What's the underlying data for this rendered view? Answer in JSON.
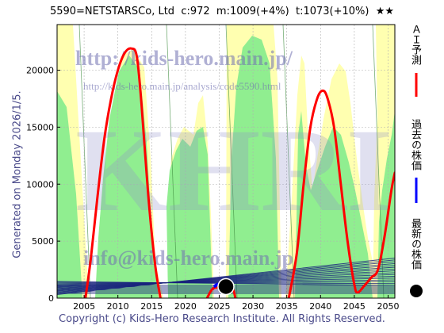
{
  "header": {
    "title": "5590=NETSTARSCo, Ltd  c:972  m:1009(+4%)  t:1073(+10%)  ★★"
  },
  "side": {
    "generated": "Generated on Monday 2026/1/5."
  },
  "footer": {
    "copyright": "Copyright (c) Kids-Hero Research Institute. All Rights Reserved."
  },
  "watermarks": {
    "url": "http://kids-hero.main.jp/",
    "analysis": "http://kids-hero.main.jp/analysis/code5590.html",
    "logo": "KHRI",
    "email": "info@kids-hero.main.jp"
  },
  "legend": {
    "ai_forecast": "ＡＩ予測",
    "past_price": "過去の株価",
    "latest_price": "最新の株価"
  },
  "colors": {
    "ai_line": "#ff0000",
    "past_line": "#0000ff",
    "latest_marker": "#000000",
    "green_fill": "#90ee90",
    "yellow_fill": "#ffffb0",
    "band_lines": "#1a237e"
  },
  "chart_data": {
    "type": "line",
    "xlim": [
      2001,
      2051
    ],
    "ylim": [
      0,
      24000
    ],
    "x_ticks": [
      2005,
      2010,
      2015,
      2020,
      2025,
      2030,
      2035,
      2040,
      2045,
      2050
    ],
    "y_ticks": [
      0,
      5000,
      10000,
      15000,
      20000
    ],
    "grid": true,
    "legend_position": "right",
    "series": [
      {
        "name": "ＡＩ予測",
        "points": [
          [
            2005.2,
            0
          ],
          [
            2006,
            3500
          ],
          [
            2007,
            9000
          ],
          [
            2008,
            14000
          ],
          [
            2009,
            17500
          ],
          [
            2010,
            20000
          ],
          [
            2011,
            21500
          ],
          [
            2012,
            21900
          ],
          [
            2012.8,
            21200
          ],
          [
            2013.5,
            17000
          ],
          [
            2014.5,
            9000
          ],
          [
            2015.5,
            3000
          ],
          [
            2016.3,
            0
          ],
          [
            2023.2,
            0
          ],
          [
            2024,
            800
          ],
          [
            2025,
            950
          ],
          [
            2026,
            1000
          ],
          [
            2027,
            800
          ],
          [
            2027.4,
            0
          ],
          [
            2035.3,
            0
          ],
          [
            2036.5,
            4000
          ],
          [
            2037.5,
            10000
          ],
          [
            2038.5,
            15000
          ],
          [
            2039.5,
            17500
          ],
          [
            2040.3,
            18200
          ],
          [
            2041,
            17600
          ],
          [
            2042,
            15000
          ],
          [
            2043,
            10000
          ],
          [
            2044,
            5000
          ],
          [
            2045,
            1200
          ],
          [
            2045.5,
            500
          ],
          [
            2046.5,
            1100
          ],
          [
            2047.5,
            1800
          ],
          [
            2048.5,
            2500
          ],
          [
            2049.5,
            5500
          ],
          [
            2050.5,
            9500
          ],
          [
            2051,
            11000
          ]
        ]
      },
      {
        "name": "過去の株価",
        "points": [
          [
            2024.2,
            1000
          ],
          [
            2024.8,
            1200
          ],
          [
            2025.3,
            1100
          ],
          [
            2025.8,
            1050
          ]
        ]
      }
    ],
    "latest": {
      "x": 2026.0,
      "y": 1010
    }
  }
}
